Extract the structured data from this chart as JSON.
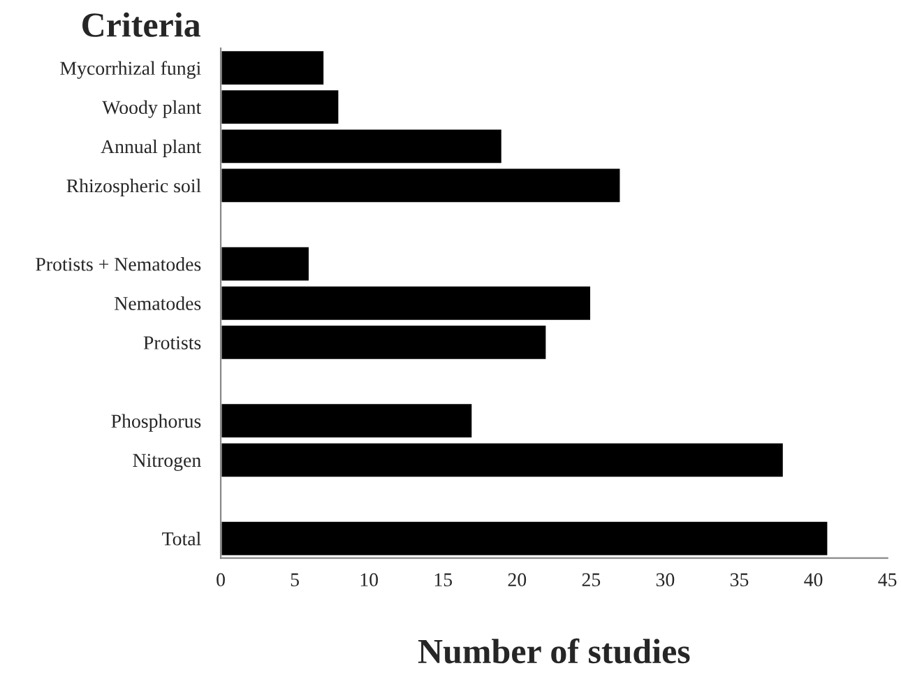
{
  "chart_data": {
    "type": "bar",
    "orientation": "horizontal",
    "title": "Criteria",
    "xlabel": "Number of studies",
    "categories": [
      "Mycorrhizal fungi",
      "Woody plant",
      "Annual plant",
      "Rhizospheric soil",
      null,
      "Protists + Nematodes",
      "Nematodes",
      "Protists",
      null,
      "Phosphorus",
      "Nitrogen",
      null,
      "Total"
    ],
    "values": [
      7,
      8,
      19,
      27,
      null,
      6,
      25,
      22,
      null,
      17,
      38,
      null,
      41
    ],
    "color": "#000000",
    "xlim": [
      0,
      45
    ],
    "xticks": [
      0,
      5,
      10,
      15,
      20,
      25,
      30,
      35,
      40,
      45
    ],
    "grid": false,
    "legend": false
  }
}
